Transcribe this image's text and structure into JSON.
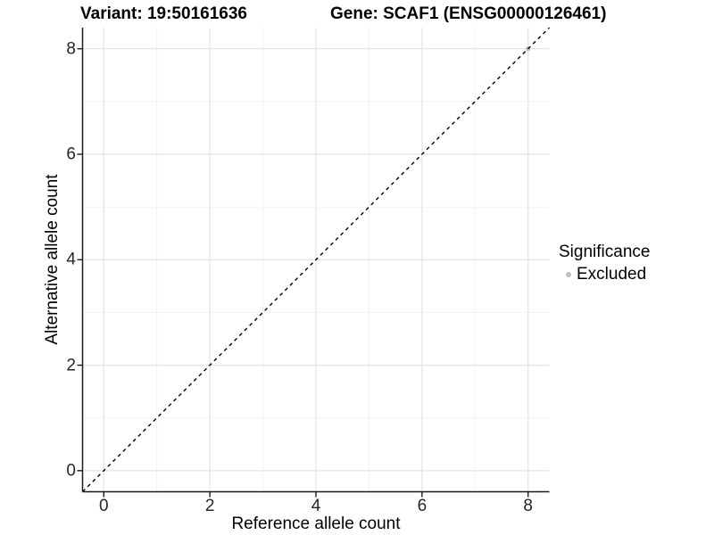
{
  "titles": {
    "variant": "Variant: 19:50161636",
    "gene": "Gene: SCAF1 (ENSG00000126461)"
  },
  "chart_data": {
    "type": "scatter",
    "xlabel": "Reference allele count",
    "ylabel": "Alternative allele count",
    "xlim": [
      -0.4,
      8.4
    ],
    "ylim": [
      -0.4,
      8.4
    ],
    "x_ticks": [
      0,
      2,
      4,
      6,
      8
    ],
    "y_ticks": [
      0,
      2,
      4,
      6,
      8
    ],
    "x_minor_ticks": [
      1,
      3,
      5,
      7
    ],
    "y_minor_ticks": [
      1,
      3,
      5,
      7
    ],
    "grid": true,
    "identity_line": {
      "type": "abline",
      "slope": 1,
      "intercept": 0,
      "style": "dashed",
      "color": "#000000"
    },
    "series": [
      {
        "name": "Excluded",
        "color": "#bebebe",
        "points": [
          [
            8,
            8
          ]
        ]
      }
    ],
    "legend": {
      "position": "right",
      "title": "Significance",
      "entries": [
        {
          "label": "Excluded",
          "color": "#bebebe"
        }
      ]
    },
    "colors": {
      "grid_major": "#e4e4e4",
      "grid_minor": "#efefef",
      "axis": "#1a1a1a",
      "tick_text": "#262626"
    }
  }
}
